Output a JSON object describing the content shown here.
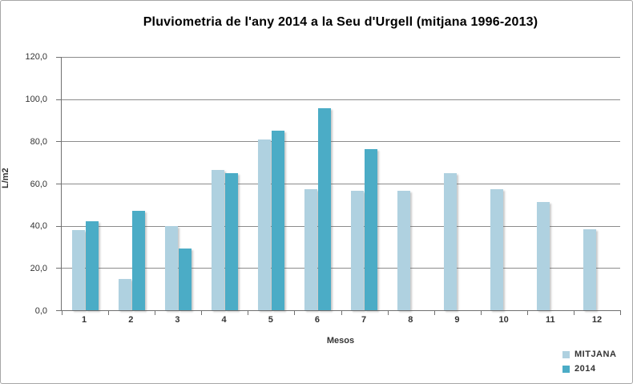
{
  "window": {
    "background": "#FFFFFF",
    "border_color": "#A6A6A6"
  },
  "chart_data": {
    "type": "bar",
    "title": "Pluviometria de l'any 2014 a la Seu d'Urgell (mitjana 1996-2013)",
    "xlabel": "Mesos",
    "ylabel": "L/m2",
    "ylim": [
      0,
      120
    ],
    "y_tick_step": 20,
    "y_tick_labels": [
      "120,0",
      "100,0",
      "80,0",
      "60,0",
      "40,0",
      "20,0",
      "0,0"
    ],
    "categories": [
      "1",
      "2",
      "3",
      "4",
      "5",
      "6",
      "7",
      "8",
      "9",
      "10",
      "11",
      "12"
    ],
    "series": [
      {
        "name": "MITJANA",
        "color": "#AFD1E0",
        "values": [
          38.0,
          15.0,
          39.9,
          66.3,
          80.9,
          57.4,
          56.5,
          56.5,
          65.0,
          57.5,
          51.2,
          38.2
        ]
      },
      {
        "name": "2014",
        "color": "#4BACC6",
        "values": [
          42.1,
          47.2,
          29.3,
          65.0,
          85.2,
          95.6,
          76.2,
          null,
          null,
          null,
          null,
          null
        ]
      }
    ],
    "grid": true,
    "gridline_color": "#8C8C8C",
    "axis_color": "#707070",
    "text_color": "#333333",
    "legend_position": "bottom-right"
  },
  "legend": {
    "items": [
      {
        "label": "MITJANA"
      },
      {
        "label": "2014"
      }
    ]
  }
}
